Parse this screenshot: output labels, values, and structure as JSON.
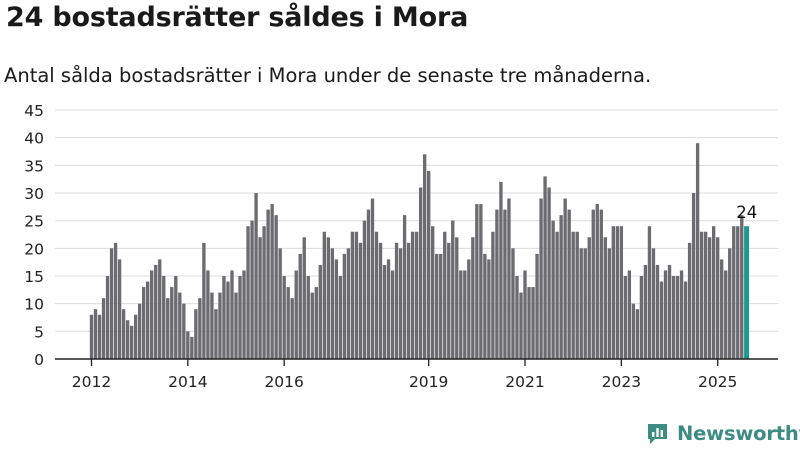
{
  "title": "24 bostadsrätter såldes i Mora",
  "subtitle": "Antal sålda bostadsrätter i Mora under de senaste tre månaderna.",
  "brand": {
    "name": "Newsworthy",
    "color": "#3d8c84",
    "logo_icon": "newsworthy-chart-logo-icon"
  },
  "colors": {
    "bar": "#6b6b70",
    "highlight": "#1c9a8e",
    "grid": "#dcdcdc",
    "axis": "#222222"
  },
  "chart_data": {
    "type": "bar",
    "xlabel": "",
    "ylabel": "",
    "ylim": [
      0,
      45
    ],
    "yticks": [
      0,
      5,
      10,
      15,
      20,
      25,
      30,
      35,
      40,
      45
    ],
    "xtick_labels": [
      "2012",
      "2014",
      "2016",
      "2019",
      "2021",
      "2023",
      "2025"
    ],
    "grid": "horizontal",
    "frequency": "monthly",
    "first_period": "2012-01",
    "last_period": "2025-07",
    "highlight_last": true,
    "annotation": "24",
    "values": [
      8,
      9,
      8,
      11,
      15,
      20,
      21,
      18,
      9,
      7,
      6,
      8,
      10,
      13,
      14,
      16,
      17,
      18,
      15,
      11,
      13,
      15,
      12,
      10,
      5,
      4,
      9,
      11,
      21,
      16,
      12,
      9,
      12,
      15,
      14,
      16,
      12,
      15,
      16,
      24,
      25,
      30,
      22,
      24,
      27,
      28,
      26,
      20,
      15,
      13,
      11,
      16,
      19,
      22,
      15,
      12,
      13,
      17,
      23,
      22,
      20,
      18,
      15,
      19,
      20,
      23,
      23,
      21,
      25,
      27,
      29,
      23,
      21,
      17,
      18,
      16,
      21,
      20,
      26,
      21,
      23,
      23,
      31,
      37,
      34,
      24,
      19,
      19,
      23,
      21,
      25,
      22,
      16,
      16,
      18,
      22,
      28,
      28,
      19,
      18,
      23,
      27,
      32,
      27,
      29,
      20,
      15,
      12,
      16,
      13,
      13,
      19,
      29,
      33,
      31,
      25,
      23,
      26,
      29,
      27,
      23,
      23,
      20,
      20,
      22,
      27,
      28,
      27,
      22,
      20,
      24,
      24,
      24,
      15,
      16,
      10,
      9,
      15,
      17,
      24,
      20,
      17,
      14,
      16,
      17,
      15,
      15,
      16,
      14,
      21,
      30,
      39,
      23,
      23,
      22,
      24,
      22,
      18,
      16,
      20,
      24,
      24,
      26,
      24
    ]
  }
}
